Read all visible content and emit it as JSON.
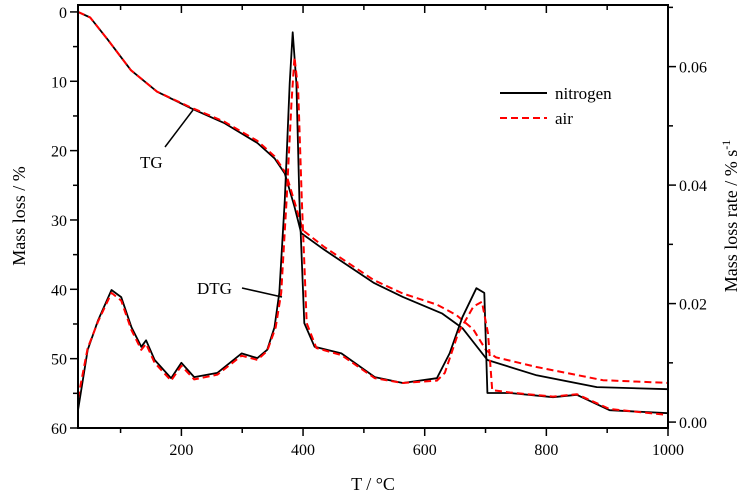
{
  "chart_data": {
    "type": "line",
    "xlabel": "T / °C",
    "ylabel_left": "Mass loss / %",
    "ylabel_right": "Mass loss rate / % s",
    "ylabel_right_sup": "-1",
    "xlim": [
      30,
      1000
    ],
    "ylim_left": [
      -1,
      60
    ],
    "ylim_left_inverted": true,
    "ylim_right": [
      -0.001,
      0.0704
    ],
    "x_ticks": [
      200,
      400,
      600,
      800,
      1000
    ],
    "x_tick_labels": [
      "200",
      "400",
      "600",
      "800",
      "1000"
    ],
    "y_left_ticks": [
      0,
      10,
      20,
      30,
      40,
      50,
      60
    ],
    "y_left_tick_labels": [
      "0",
      "10",
      "20",
      "30",
      "40",
      "50",
      "60"
    ],
    "y_right_ticks": [
      0,
      0.02,
      0.04,
      0.06
    ],
    "y_right_tick_labels": [
      "0.00",
      "0.02",
      "0.04",
      "0.06"
    ],
    "grid": false,
    "legend_placement": "top-right",
    "legend": [
      {
        "name": "nitrogen",
        "color": "#000000",
        "style": "solid"
      },
      {
        "name": "air",
        "color": "#ff0000",
        "style": "dashed"
      }
    ],
    "annotations": [
      "TG",
      "DTG"
    ],
    "series": [
      {
        "name": "nitrogen",
        "curve": "TG",
        "axis": "left",
        "color": "#000000",
        "style": "solid",
        "points": [
          [
            30,
            0
          ],
          [
            50,
            0.8
          ],
          [
            79,
            4.0
          ],
          [
            117,
            8.4
          ],
          [
            160,
            11.5
          ],
          [
            216,
            13.9
          ],
          [
            270,
            16.0
          ],
          [
            325,
            18.9
          ],
          [
            353,
            21.1
          ],
          [
            370,
            23.3
          ],
          [
            386,
            28.1
          ],
          [
            397,
            31.9
          ],
          [
            435,
            34.3
          ],
          [
            517,
            39.1
          ],
          [
            564,
            41.1
          ],
          [
            629,
            43.5
          ],
          [
            662,
            45.6
          ],
          [
            703,
            50.2
          ],
          [
            784,
            52.4
          ],
          [
            883,
            54.1
          ],
          [
            1000,
            54.4
          ]
        ]
      },
      {
        "name": "air",
        "curve": "TG",
        "axis": "left",
        "color": "#ff0000",
        "style": "dashed",
        "points": [
          [
            30,
            0
          ],
          [
            50,
            0.8
          ],
          [
            79,
            4.0
          ],
          [
            117,
            8.4
          ],
          [
            160,
            11.5
          ],
          [
            216,
            13.8
          ],
          [
            270,
            15.8
          ],
          [
            325,
            18.6
          ],
          [
            353,
            20.8
          ],
          [
            372,
            23.3
          ],
          [
            388,
            28.0
          ],
          [
            400,
            31.5
          ],
          [
            435,
            33.9
          ],
          [
            517,
            38.7
          ],
          [
            564,
            40.6
          ],
          [
            620,
            42.2
          ],
          [
            652,
            43.7
          ],
          [
            680,
            45.8
          ],
          [
            701,
            48.8
          ],
          [
            717,
            49.8
          ],
          [
            784,
            51.2
          ],
          [
            893,
            53.1
          ],
          [
            1000,
            53.5
          ]
        ]
      },
      {
        "name": "nitrogen",
        "curve": "DTG",
        "axis": "right",
        "color": "#000000",
        "style": "solid",
        "points": [
          [
            30,
            0.002
          ],
          [
            46,
            0.0122
          ],
          [
            63,
            0.0172
          ],
          [
            85,
            0.0223
          ],
          [
            101,
            0.0211
          ],
          [
            118,
            0.016
          ],
          [
            134,
            0.0127
          ],
          [
            142,
            0.0138
          ],
          [
            156,
            0.0105
          ],
          [
            183,
            0.0074
          ],
          [
            200,
            0.01
          ],
          [
            221,
            0.0076
          ],
          [
            259,
            0.0083
          ],
          [
            299,
            0.0116
          ],
          [
            325,
            0.0108
          ],
          [
            341,
            0.0122
          ],
          [
            353,
            0.016
          ],
          [
            361,
            0.0218
          ],
          [
            370,
            0.0375
          ],
          [
            378,
            0.0572
          ],
          [
            383,
            0.0658
          ],
          [
            389,
            0.0572
          ],
          [
            394,
            0.0375
          ],
          [
            402,
            0.0167
          ],
          [
            419,
            0.0127
          ],
          [
            463,
            0.0116
          ],
          [
            518,
            0.0076
          ],
          [
            564,
            0.0066
          ],
          [
            620,
            0.0074
          ],
          [
            641,
            0.0116
          ],
          [
            662,
            0.0177
          ],
          [
            685,
            0.0226
          ],
          [
            698,
            0.0218
          ],
          [
            703,
            0.0049
          ],
          [
            740,
            0.0049
          ],
          [
            811,
            0.0042
          ],
          [
            850,
            0.0046
          ],
          [
            904,
            0.002
          ],
          [
            1000,
            0.0015
          ]
        ]
      },
      {
        "name": "air",
        "curve": "DTG",
        "axis": "right",
        "color": "#ff0000",
        "style": "dashed",
        "points": [
          [
            30,
            0.004
          ],
          [
            46,
            0.0125
          ],
          [
            63,
            0.017
          ],
          [
            85,
            0.0218
          ],
          [
            101,
            0.0205
          ],
          [
            118,
            0.0155
          ],
          [
            134,
            0.0122
          ],
          [
            142,
            0.0132
          ],
          [
            156,
            0.01
          ],
          [
            183,
            0.007
          ],
          [
            200,
            0.0095
          ],
          [
            221,
            0.0072
          ],
          [
            259,
            0.008
          ],
          [
            299,
            0.0112
          ],
          [
            325,
            0.0105
          ],
          [
            341,
            0.012
          ],
          [
            355,
            0.016
          ],
          [
            364,
            0.0218
          ],
          [
            373,
            0.0375
          ],
          [
            381,
            0.054
          ],
          [
            386,
            0.0616
          ],
          [
            392,
            0.056
          ],
          [
            398,
            0.0375
          ],
          [
            406,
            0.0167
          ],
          [
            422,
            0.0125
          ],
          [
            463,
            0.0113
          ],
          [
            518,
            0.0074
          ],
          [
            564,
            0.0066
          ],
          [
            620,
            0.007
          ],
          [
            633,
            0.0083
          ],
          [
            655,
            0.015
          ],
          [
            680,
            0.0195
          ],
          [
            694,
            0.0203
          ],
          [
            704,
            0.015
          ],
          [
            711,
            0.0054
          ],
          [
            740,
            0.005
          ],
          [
            811,
            0.0043
          ],
          [
            850,
            0.0047
          ],
          [
            904,
            0.0022
          ],
          [
            1000,
            0.0012
          ]
        ]
      }
    ]
  }
}
